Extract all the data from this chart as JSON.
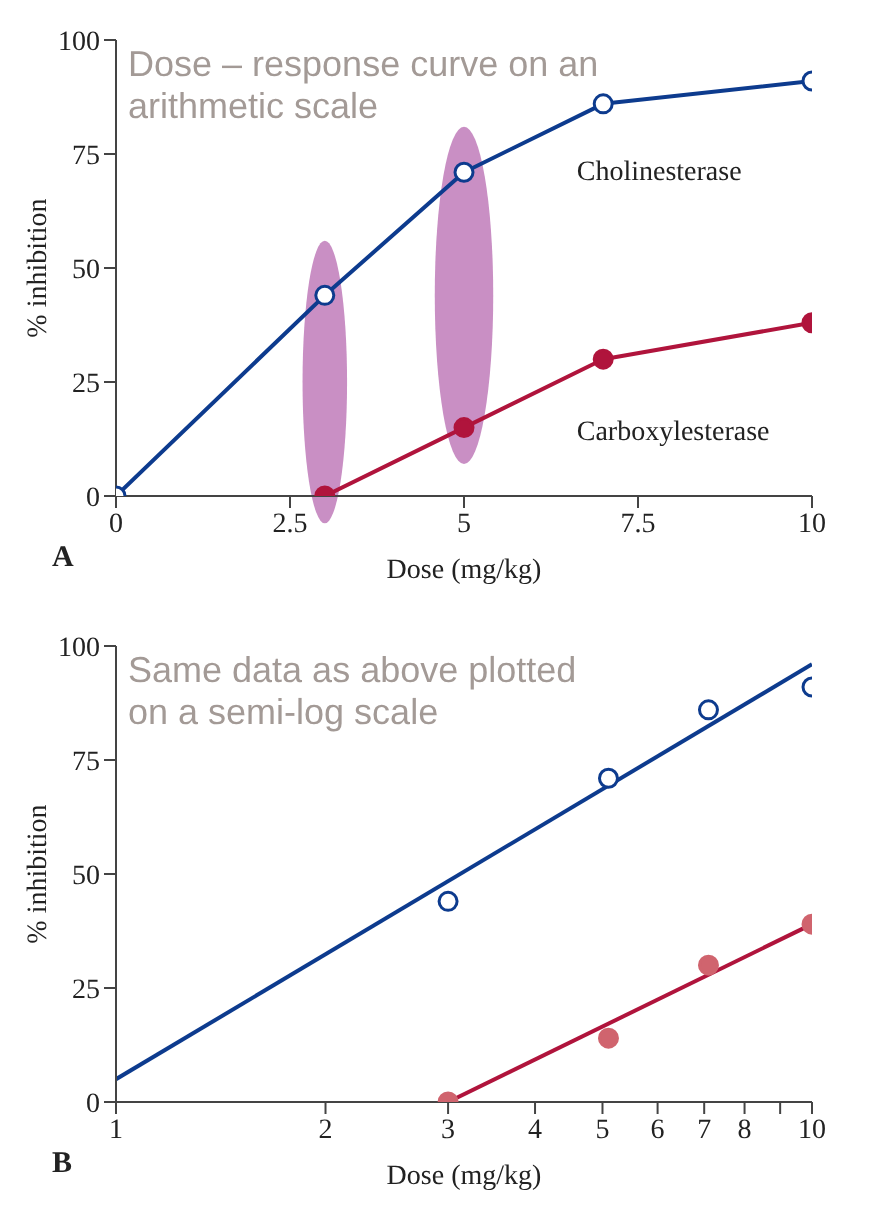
{
  "chart_data": [
    {
      "type": "line",
      "title": "Dose – response curve on an arithmetic scale",
      "xlabel": "Dose (mg/kg)",
      "ylabel": "% inhibition",
      "annotations": [
        "A"
      ],
      "marker": "circle",
      "grid": false,
      "legend": false,
      "xlim": [
        0,
        10
      ],
      "xticks": [
        0,
        2.5,
        5,
        7.5,
        10
      ],
      "ylim": [
        0,
        100
      ],
      "yticks": [
        0,
        25,
        50,
        75,
        100
      ],
      "series": [
        {
          "name": "Cholinesterase",
          "color": "#0d3b8e",
          "x": [
            0,
            3,
            5,
            7,
            10
          ],
          "values": [
            0,
            44,
            71,
            86,
            91
          ]
        },
        {
          "name": "Carboxylesterase",
          "color": "#b0143c",
          "x": [
            3,
            5,
            7,
            10
          ],
          "values": [
            0,
            15,
            30,
            38
          ]
        }
      ]
    },
    {
      "type": "scatter",
      "title": "Same data as above plotted on a semi-log scale",
      "xlabel": "Dose (mg/kg)",
      "ylabel": "% inhibition",
      "annotations": [
        "B"
      ],
      "marker": "circle",
      "grid": false,
      "legend": false,
      "log": "x",
      "xlim": [
        1,
        10
      ],
      "xticks": [
        1,
        2,
        3,
        4,
        5,
        6,
        7,
        8,
        {
          "value": 9,
          "label": null
        },
        10
      ],
      "ylim": [
        0,
        100
      ],
      "yticks": [
        0,
        25,
        50,
        75,
        100
      ],
      "series": [
        {
          "color": "#0d3b8e",
          "x": [
            3,
            5.1,
            7.1,
            10
          ],
          "values": [
            44,
            71,
            86,
            91
          ]
        },
        {
          "color": "#d0646e",
          "x": [
            3,
            5.1,
            7.1,
            10
          ],
          "values": [
            0,
            14,
            30,
            39
          ]
        },
        {
          "type": "line",
          "marker": "none",
          "color": "#0d3b8e",
          "x": [
            1,
            10
          ],
          "values": [
            5,
            96
          ]
        },
        {
          "type": "line",
          "marker": "none",
          "color": "#b0143c",
          "x": [
            3,
            10
          ],
          "values": [
            0,
            39
          ]
        }
      ]
    }
  ]
}
